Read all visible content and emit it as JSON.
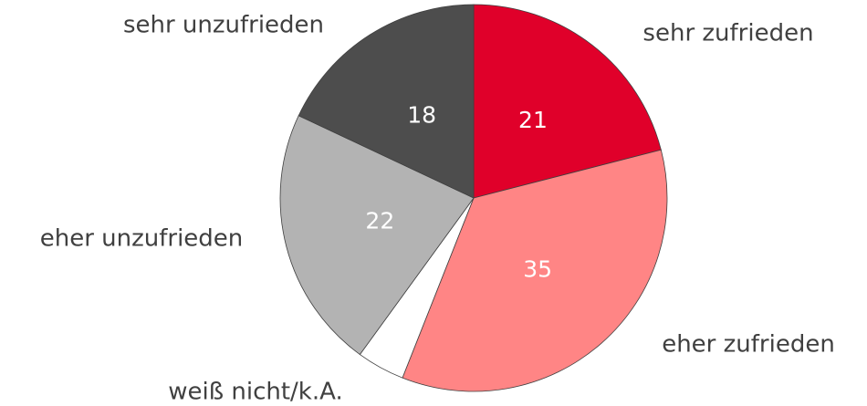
{
  "chart_data": {
    "type": "pie",
    "categories": [
      "sehr zufrieden",
      "eher zufrieden",
      "weiß nicht/k.A.",
      "eher unzufrieden",
      "sehr unzufrieden"
    ],
    "values": [
      21,
      35,
      4,
      22,
      18
    ],
    "colors": [
      "#e0002a",
      "#ff8585",
      "#ffffff",
      "#b3b3b3",
      "#4d4d4d"
    ]
  }
}
